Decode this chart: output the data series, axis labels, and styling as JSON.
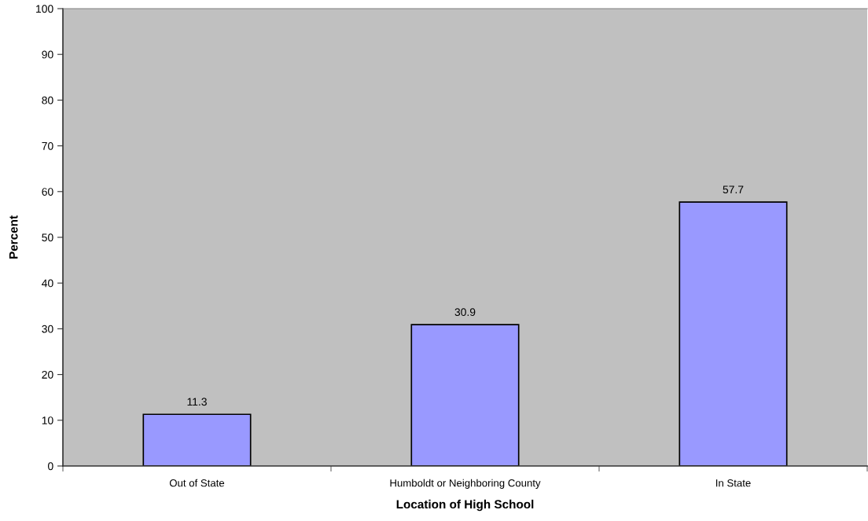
{
  "chart_data": {
    "type": "bar",
    "xlabel": "Location of High School",
    "ylabel": "Percent",
    "categories": [
      "Out of State",
      "Humboldt or Neighboring County",
      "In State"
    ],
    "values": [
      11.3,
      30.9,
      57.7
    ],
    "color": "#9999ff",
    "ylim": [
      0,
      100
    ],
    "yticks": [
      0,
      10,
      20,
      30,
      40,
      50,
      60,
      70,
      80,
      90,
      100
    ],
    "data_labels": true,
    "grid": false,
    "legend": false
  }
}
